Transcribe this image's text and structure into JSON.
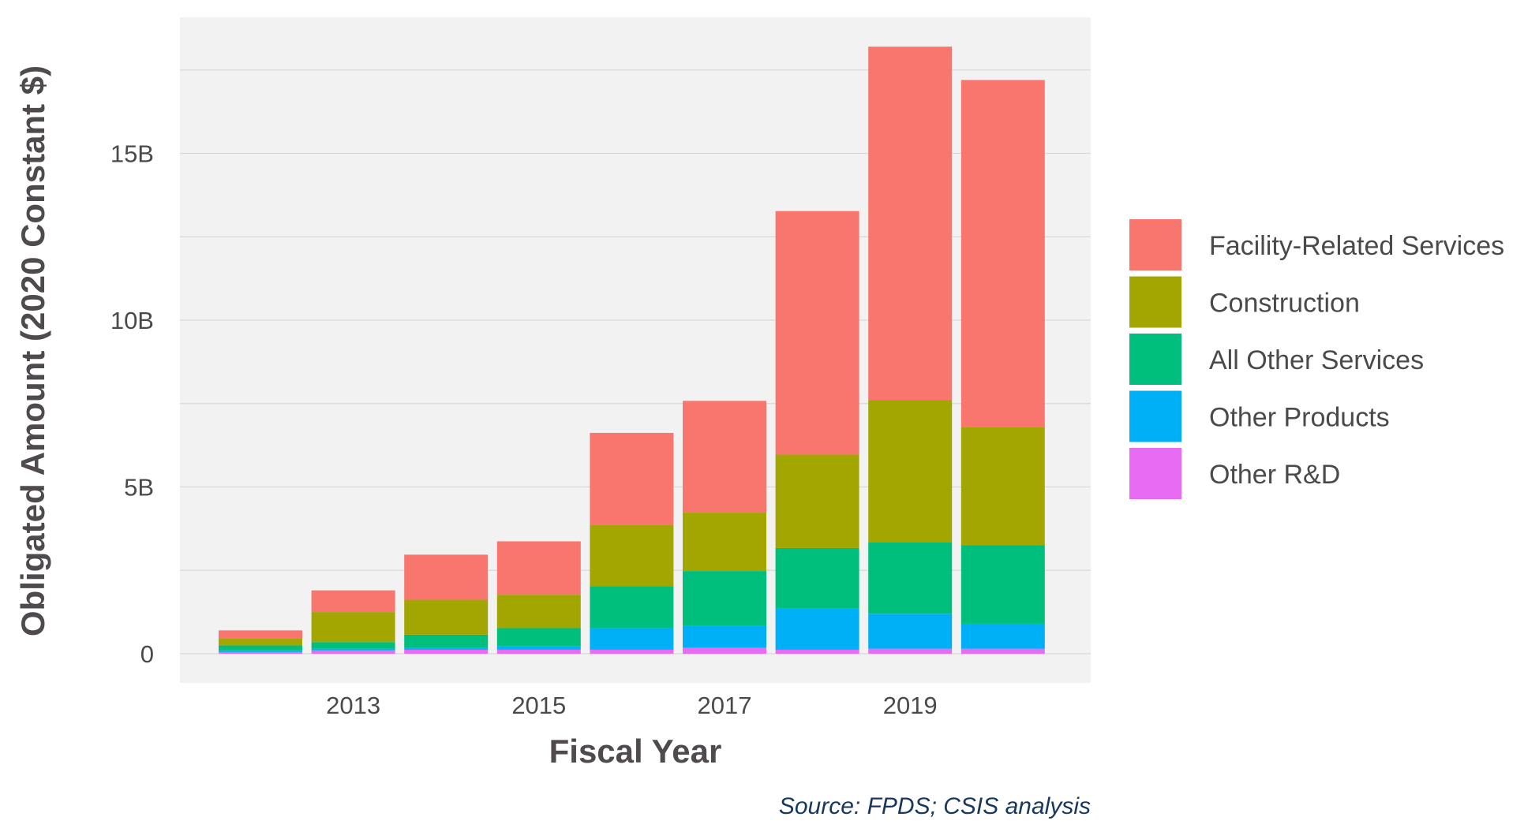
{
  "chart_data": {
    "type": "bar",
    "stacked": true,
    "xlabel": "Fiscal Year",
    "ylabel": "Obligated Amount (2020 Constant $)",
    "categories": [
      2012,
      2013,
      2014,
      2015,
      2016,
      2017,
      2018,
      2019,
      2020
    ],
    "x_tick_labels": [
      "2013",
      "2015",
      "2017",
      "2019"
    ],
    "ylim": [
      0,
      19
    ],
    "y_ticks": [
      {
        "value": 0,
        "label": "0"
      },
      {
        "value": 5,
        "label": "5B"
      },
      {
        "value": 10,
        "label": "10B"
      },
      {
        "value": 15,
        "label": "15B"
      }
    ],
    "grid": true,
    "legend_position": "right",
    "series": [
      {
        "name": "Other R&D",
        "color": "#E76BF3",
        "values": [
          0.05,
          0.1,
          0.12,
          0.12,
          0.12,
          0.18,
          0.12,
          0.15,
          0.15
        ]
      },
      {
        "name": "Other Products",
        "color": "#00B0F6",
        "values": [
          0.05,
          0.05,
          0.05,
          0.1,
          0.65,
          0.65,
          1.25,
          1.05,
          0.75
        ]
      },
      {
        "name": "All Other Services",
        "color": "#00BF7D",
        "values": [
          0.15,
          0.2,
          0.4,
          0.55,
          1.25,
          1.65,
          1.8,
          2.15,
          2.35
        ]
      },
      {
        "name": "Construction",
        "color": "#A3A500",
        "values": [
          0.2,
          0.9,
          1.05,
          1.0,
          1.85,
          1.75,
          2.8,
          4.25,
          3.55
        ]
      },
      {
        "name": "Facility-Related Services",
        "color": "#F8766D",
        "values": [
          0.25,
          0.65,
          1.35,
          1.6,
          2.75,
          3.35,
          7.3,
          10.6,
          10.4
        ]
      }
    ],
    "legend_order": [
      "Facility-Related Services",
      "Construction",
      "All Other Services",
      "Other Products",
      "Other R&D"
    ],
    "source": "Source: FPDS; CSIS analysis",
    "panel_background": "#F2F2F2",
    "grid_color": "#D9D9D9"
  }
}
